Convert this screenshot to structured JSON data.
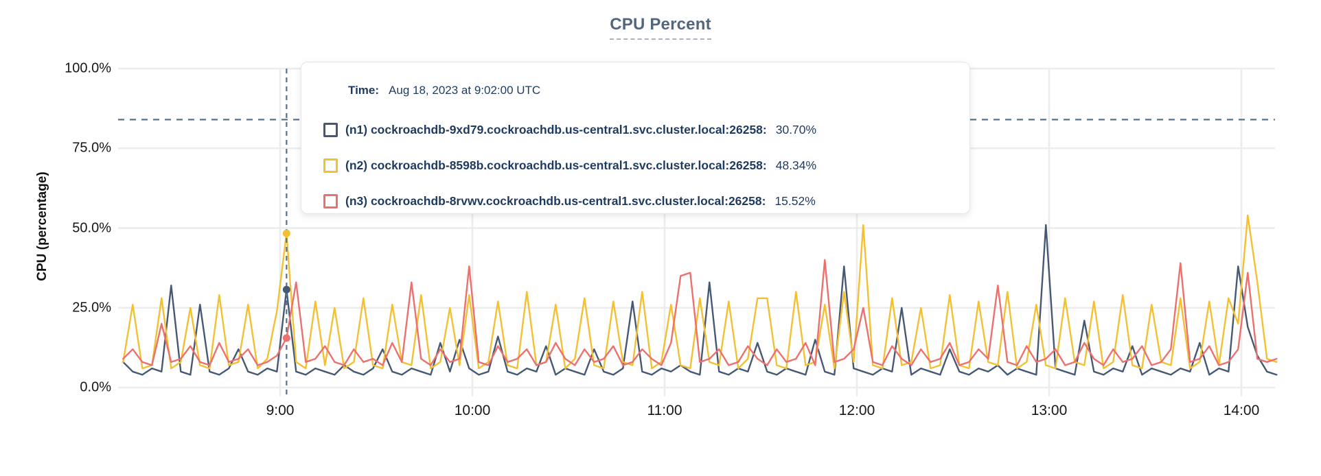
{
  "title": "CPU Percent",
  "y_axis": {
    "label": "CPU (percentage)"
  },
  "tooltip": {
    "time_label": "Time:",
    "time_value": "Aug 18, 2023 at 9:02:00 UTC",
    "rows": [
      {
        "node": "(n1) cockroachdb-9xd79.cockroachdb.us-central1.svc.cluster.local:26258:",
        "value": "30.70%",
        "color": "#475872"
      },
      {
        "node": "(n2) cockroachdb-8598b.cockroachdb.us-central1.svc.cluster.local:26258:",
        "value": "48.34%",
        "color": "#f2c032"
      },
      {
        "node": "(n3) cockroachdb-8rvwv.cockroachdb.us-central1.svc.cluster.local:26258:",
        "value": "15.52%",
        "color": "#ec706d"
      }
    ]
  },
  "colors": {
    "background": "#ffffff",
    "grid": "#ececec",
    "dashed_guides": "#5a7186",
    "title": "#54657e",
    "axis_text": "#161616",
    "tooltip_text": "#1e3a5f",
    "tooltip_border": "#e6e7ec"
  },
  "chart_data": {
    "type": "line",
    "title": "CPU Percent",
    "xlabel": "",
    "ylabel": "CPU (percentage)",
    "ylim": [
      0,
      100
    ],
    "grid": true,
    "y_ticks": [
      {
        "label": "100.0%",
        "value": 100
      },
      {
        "label": "75.0%",
        "value": 75
      },
      {
        "label": "50.0%",
        "value": 50
      },
      {
        "label": "25.0%",
        "value": 25
      },
      {
        "label": "0.0%",
        "value": 0
      }
    ],
    "x_ticks": [
      {
        "label": "9:00",
        "minutes": 540
      },
      {
        "label": "10:00",
        "minutes": 600
      },
      {
        "label": "11:00",
        "minutes": 660
      },
      {
        "label": "12:00",
        "minutes": 720
      },
      {
        "label": "13:00",
        "minutes": 780
      },
      {
        "label": "14:00",
        "minutes": 840
      }
    ],
    "x_start_minutes": 491,
    "x_step_minutes": 3,
    "x_range_minutes": [
      491,
      851
    ],
    "threshold_percent": 84,
    "hover": {
      "minutes": 542,
      "time_text": "Aug 18, 2023 at 9:02:00 UTC",
      "values": [
        30.7,
        48.34,
        15.52
      ]
    },
    "series": [
      {
        "name": "(n1) cockroachdb-9xd79.cockroachdb.us-central1.svc.cluster.local:26258",
        "color": "#475872",
        "values": [
          8,
          5,
          4,
          6,
          5,
          32,
          5,
          4,
          26,
          5,
          4,
          6,
          12,
          5,
          4,
          6,
          5,
          30.7,
          5,
          4,
          6,
          5,
          4,
          7,
          5,
          4,
          6,
          12,
          5,
          4,
          6,
          5,
          4,
          14,
          5,
          15,
          6,
          4,
          5,
          16,
          5,
          4,
          6,
          5,
          13,
          4,
          6,
          5,
          4,
          12,
          5,
          4,
          6,
          27,
          5,
          4,
          6,
          5,
          7,
          5,
          4,
          33,
          5,
          4,
          6,
          5,
          14,
          5,
          4,
          6,
          5,
          4,
          15,
          5,
          4,
          38,
          6,
          5,
          4,
          6,
          5,
          25,
          4,
          6,
          5,
          4,
          12,
          5,
          4,
          6,
          5,
          7,
          4,
          6,
          5,
          4,
          51,
          6,
          5,
          4,
          21,
          5,
          4,
          6,
          5,
          13,
          4,
          6,
          5,
          4,
          6,
          5,
          14,
          4,
          6,
          5,
          38,
          19,
          10,
          5,
          4
        ]
      },
      {
        "name": "(n2) cockroachdb-8598b.cockroachdb.us-central1.svc.cluster.local:26258",
        "color": "#f2c032",
        "values": [
          8,
          26,
          6,
          7,
          28,
          6,
          8,
          25,
          7,
          6,
          29,
          7,
          8,
          26,
          6,
          9,
          24,
          48.34,
          8,
          6,
          27,
          7,
          25,
          6,
          8,
          28,
          7,
          6,
          26,
          8,
          7,
          29,
          6,
          8,
          25,
          7,
          29,
          6,
          8,
          27,
          7,
          6,
          30,
          7,
          8,
          26,
          6,
          9,
          28,
          7,
          6,
          27,
          8,
          7,
          30,
          6,
          8,
          26,
          7,
          6,
          28,
          8,
          7,
          27,
          6,
          9,
          28,
          28,
          7,
          6,
          30,
          7,
          8,
          26,
          6,
          30,
          8,
          51,
          7,
          6,
          28,
          7,
          8,
          25,
          6,
          7,
          29,
          7,
          6,
          27,
          8,
          7,
          30,
          6,
          8,
          26,
          7,
          6,
          28,
          8,
          7,
          27,
          6,
          8,
          29,
          7,
          6,
          26,
          8,
          7,
          28,
          6,
          8,
          27,
          7,
          28,
          20,
          54,
          33,
          9,
          8
        ]
      },
      {
        "name": "(n3) cockroachdb-8rvwv.cockroachdb.us-central1.svc.cluster.local:26258",
        "color": "#ec706d",
        "values": [
          9,
          12,
          8,
          7,
          20,
          8,
          9,
          13,
          8,
          7,
          14,
          8,
          9,
          12,
          7,
          8,
          10,
          15.52,
          33,
          8,
          9,
          13,
          8,
          7,
          12,
          8,
          9,
          7,
          14,
          8,
          33,
          9,
          7,
          12,
          8,
          9,
          38,
          8,
          7,
          13,
          8,
          9,
          12,
          7,
          8,
          14,
          9,
          7,
          12,
          8,
          9,
          13,
          7,
          8,
          12,
          9,
          7,
          14,
          35,
          36,
          8,
          9,
          12,
          7,
          8,
          13,
          9,
          7,
          12,
          8,
          9,
          14,
          7,
          40,
          8,
          9,
          12,
          25,
          8,
          7,
          13,
          9,
          7,
          12,
          8,
          9,
          14,
          7,
          8,
          12,
          9,
          32,
          8,
          7,
          13,
          8,
          9,
          12,
          7,
          8,
          14,
          9,
          7,
          12,
          8,
          9,
          13,
          7,
          8,
          12,
          39,
          8,
          9,
          13,
          7,
          8,
          12,
          36,
          9,
          8,
          9
        ]
      }
    ]
  }
}
